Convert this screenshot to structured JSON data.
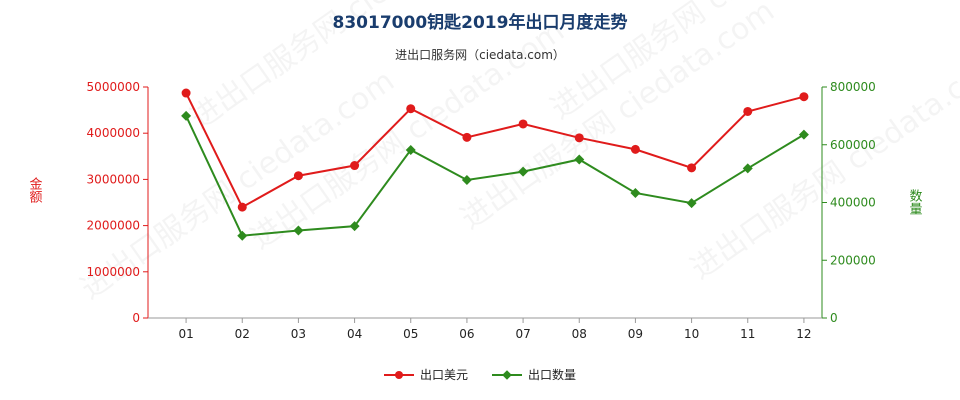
{
  "title": "83017000钥匙2019年出口月度走势",
  "subtitle": "进出口服务网（ciedata.com）",
  "watermark": "进出口服务网 ciedata.com",
  "chart_data": {
    "type": "line",
    "categories": [
      "01",
      "02",
      "03",
      "04",
      "05",
      "06",
      "07",
      "08",
      "09",
      "10",
      "11",
      "12"
    ],
    "y_left": {
      "label": "金额",
      "ylim": [
        0,
        5000000
      ],
      "ticks": [
        0,
        1000000,
        2000000,
        3000000,
        4000000,
        5000000
      ]
    },
    "y_right": {
      "label": "数量",
      "ylim": [
        0,
        800000
      ],
      "ticks": [
        0,
        200000,
        400000,
        600000,
        800000
      ]
    },
    "series": [
      {
        "name": "出口美元",
        "axis": "left",
        "color": "#e01b1b",
        "marker": "circle",
        "values": [
          4870000,
          2400000,
          3080000,
          3300000,
          4530000,
          3910000,
          4200000,
          3900000,
          3650000,
          3250000,
          4470000,
          4790000
        ]
      },
      {
        "name": "出口数量",
        "axis": "right",
        "color": "#2e8b1e",
        "marker": "diamond",
        "values": [
          700000,
          285000,
          303000,
          318000,
          582000,
          478000,
          507000,
          549000,
          433000,
          398000,
          518000,
          635000
        ]
      }
    ],
    "legend_position": "bottom",
    "grid": false
  }
}
